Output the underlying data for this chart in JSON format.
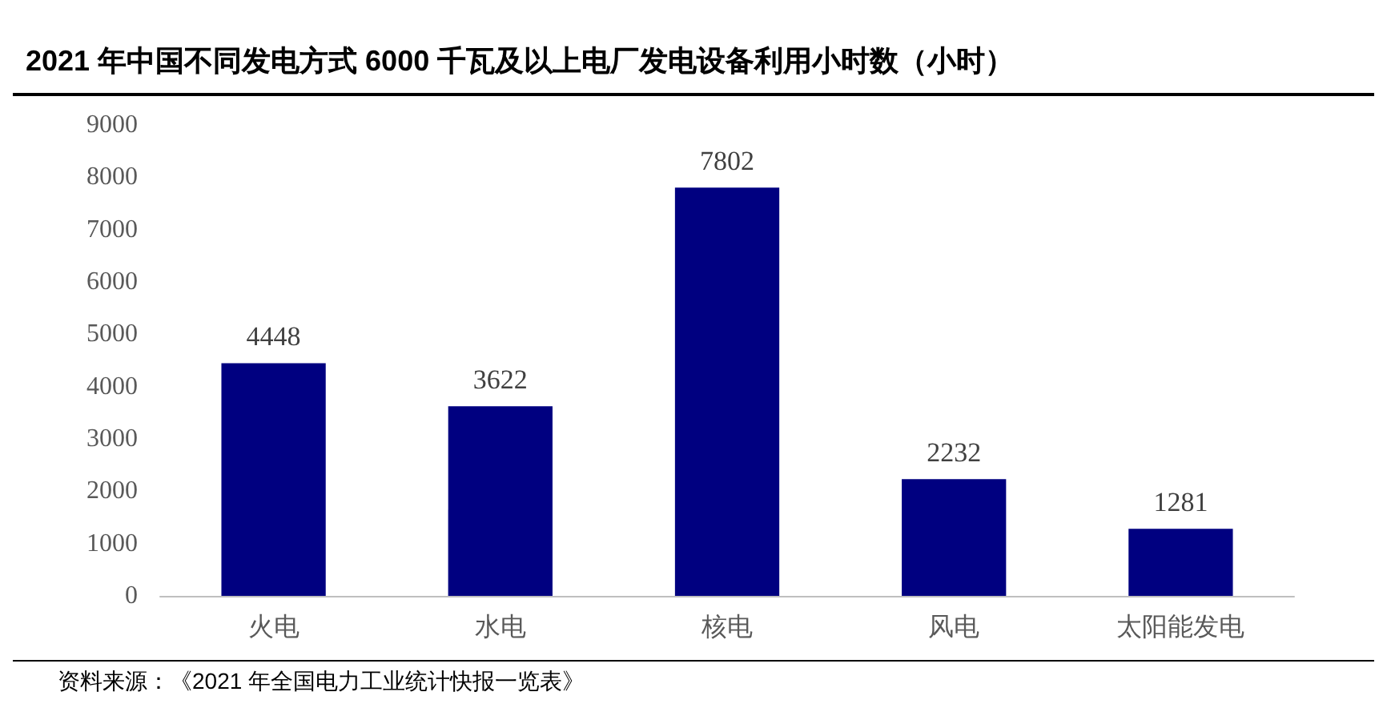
{
  "chart_data": {
    "type": "bar",
    "title": "2021 年中国不同发电方式 6000 千瓦及以上电厂发电设备利用小时数（小时）",
    "categories": [
      "火电",
      "水电",
      "核电",
      "风电",
      "太阳能发电"
    ],
    "values": [
      4448,
      3622,
      7802,
      2232,
      1281
    ],
    "color": "#000080",
    "ylim": [
      0,
      9000
    ],
    "yticks": [
      0,
      1000,
      2000,
      3000,
      4000,
      5000,
      6000,
      7000,
      8000,
      9000
    ],
    "grid": false,
    "data_labels": true,
    "annotations": [
      "资料来源：《2021 年全国电力工业统计快报一览表》"
    ]
  }
}
